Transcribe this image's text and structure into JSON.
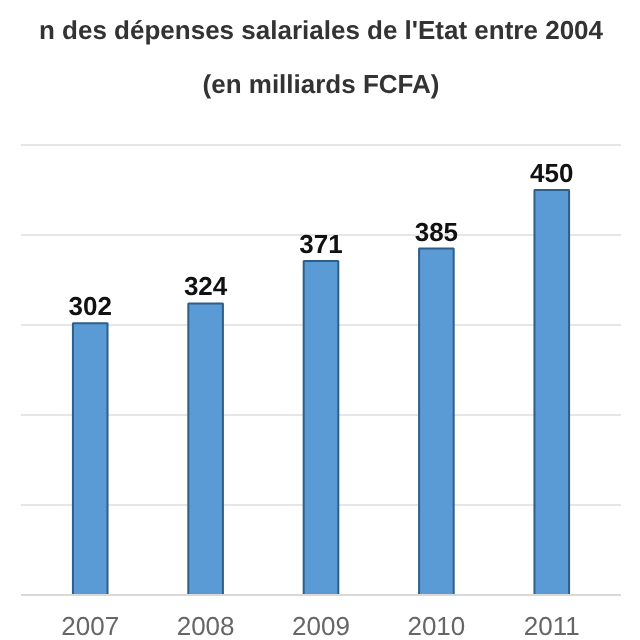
{
  "chart_data": {
    "type": "bar",
    "title": "n des dépenses salariales de l'Etat entre 2004",
    "subtitle": "(en milliards FCFA)",
    "categories": [
      "2007",
      "2008",
      "2009",
      "2010",
      "2011"
    ],
    "values": [
      302,
      324,
      371,
      385,
      450
    ],
    "color": "#5b9bd5",
    "data_labels": true,
    "grid": "y",
    "tick_labels": "x"
  }
}
